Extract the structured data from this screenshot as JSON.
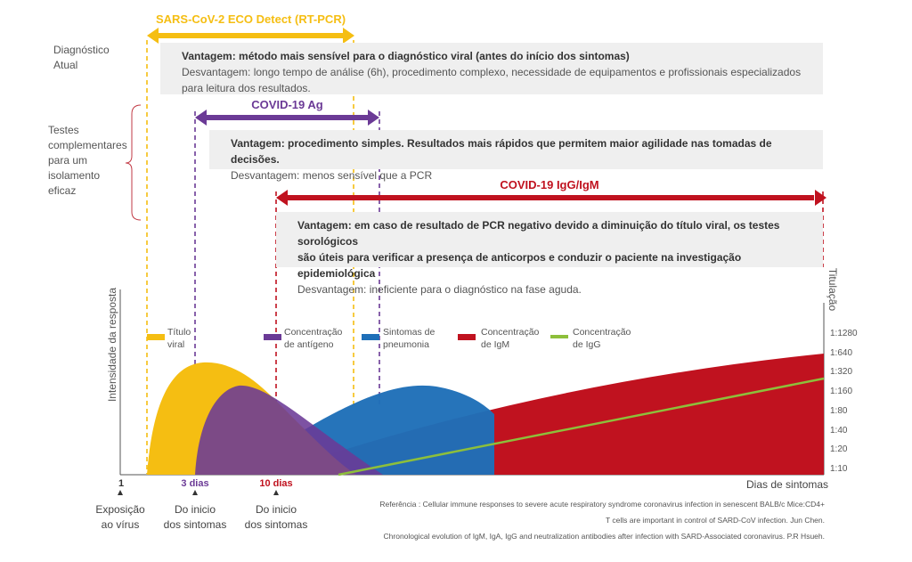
{
  "colors": {
    "yellow": "#F5BE12",
    "purple": "#6B3A96",
    "blue": "#1F6FB8",
    "red": "#C0121F",
    "green": "#8DBF3B",
    "box_bg": "#EFEFEF",
    "bracket": "#C23A45"
  },
  "left_labels": {
    "current_diagnosis": [
      "Diagnóstico",
      "Atual"
    ],
    "complementary_tests": [
      "Testes",
      "complementares",
      "para um",
      "isolamento",
      "eficaz"
    ]
  },
  "tests": [
    {
      "name": "SARS-CoV-2 ECO Detect (RT-PCR)",
      "advantage": "Vantagem: método mais sensível para o diagnóstico viral (antes do início dos sintomas)",
      "disadvantage_line1": "Desvantagem:  longo tempo de análise (6h), procedimento complexo, necessidade de equipamentos e profissionais especializados",
      "disadvantage_line2": "para leitura dos resultados."
    },
    {
      "name": "COVID-19 Ag",
      "advantage": "Vantagem: procedimento simples. Resultados mais rápidos que permitem maior agilidade nas tomadas de decisões.",
      "disadvantage_line1": "Desvantagem: menos sensível que a PCR"
    },
    {
      "name": "COVID-19 IgG/IgM",
      "advantage_line1": "Vantagem: em caso de resultado de PCR negativo devido a diminuição do título viral, os testes sorológicos",
      "advantage_line2": "são úteis para verificar a presença de anticorpos e conduzir o paciente na investigação epidemiológica",
      "disadvantage_line1": "Desvantagem: ineficiente para o diagnóstico na fase aguda."
    }
  ],
  "chart": {
    "y_axis_label": "Intensidade da resposta",
    "right_axis_label": "Titulação",
    "x_axis_label": "Dias de sintomas",
    "titer_ticks": [
      "1:1280",
      "1:640",
      "1:320",
      "1:160",
      "1:80",
      "1:40",
      "1:20",
      "1:10"
    ],
    "legend": [
      {
        "lines": [
          "Título",
          "viral"
        ],
        "color": "#F5BE12"
      },
      {
        "lines": [
          "Concentração",
          "de antígeno"
        ],
        "color": "#6B3A96"
      },
      {
        "lines": [
          "Sintomas de",
          "pneumonia"
        ],
        "color": "#1F6FB8"
      },
      {
        "lines": [
          "Concentração",
          "de IgM"
        ],
        "color": "#C0121F"
      },
      {
        "lines": [
          "Concentração",
          "de IgG"
        ],
        "color": "#8DBF3B"
      }
    ],
    "x_markers": [
      {
        "value": "1",
        "caption": [
          "Exposição",
          "ao vírus"
        ],
        "color": "#333333"
      },
      {
        "value": "3 dias",
        "caption": [
          "Do inicio",
          "dos sintomas"
        ],
        "color": "#6B3A96"
      },
      {
        "value": "10 dias",
        "caption": [
          "Do inicio",
          "dos sintomas"
        ],
        "color": "#C0121F"
      }
    ]
  },
  "references": [
    "Referência : Cellular immune responses to severe acute respiratory syndrome coronavirus infection in senescent BALB/c Mice:CD4+",
    "T cells are important in control of SARD-CoV infection. Jun Chen.",
    "Chronological evolution of IgM, IgA, IgG and neutralization antibodies after infection with SARD-Associated coronavirus. P.R Hsueh."
  ]
}
